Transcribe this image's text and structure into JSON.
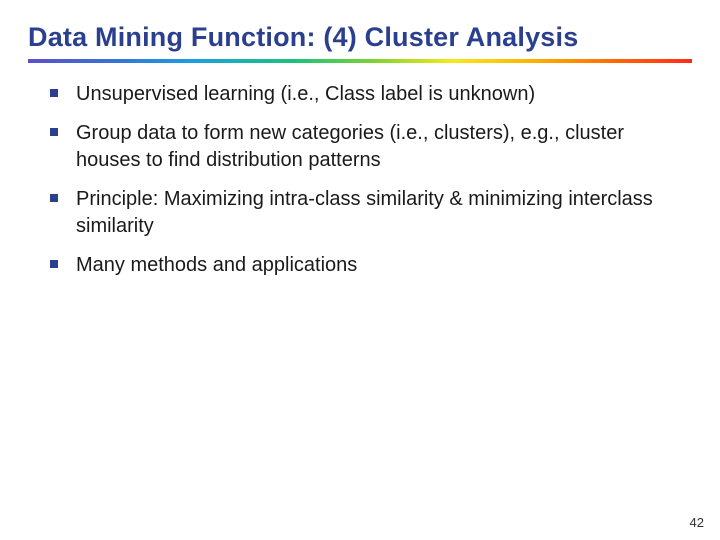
{
  "title": {
    "text": "Data Mining Function: (4) Cluster Analysis",
    "color": "#2a3f8f",
    "fontsize": 27
  },
  "rainbow": {
    "gradient": "linear-gradient(to right, #5a4fcf 0%, #3a6fd8 12%, #1aa0e0 25%, #19c27a 40%, #7ed233 52%, #f7e81a 64%, #ffb200 76%, #ff6a00 88%, #ff2a1a 100%)"
  },
  "bullets": {
    "items": [
      "Unsupervised learning (i.e., Class label is unknown)",
      "Group data to form new categories (i.e., clusters), e.g., cluster houses to find distribution patterns",
      "Principle: Maximizing intra-class similarity & minimizing interclass similarity",
      "Many methods and applications"
    ],
    "color": "#1a1a1a",
    "fontsize": 20,
    "lineheight": 1.35,
    "marker_color": "#2a3f8f"
  },
  "page_number": {
    "value": "42",
    "fontsize": 13,
    "color": "#333333"
  }
}
